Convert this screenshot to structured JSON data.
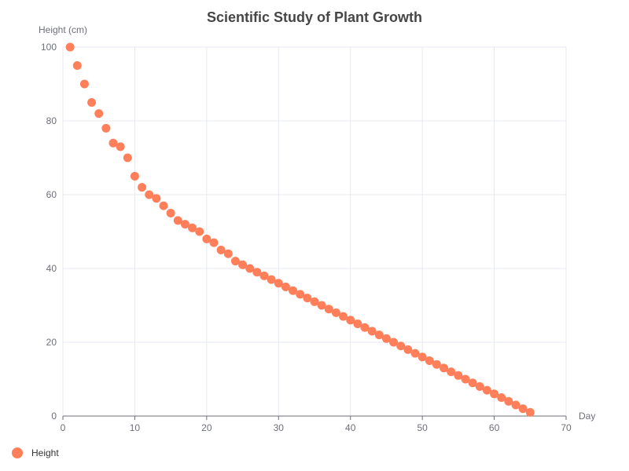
{
  "chart_data": {
    "type": "scatter",
    "title": "Scientific Study of Plant Growth",
    "xlabel": "Day",
    "ylabel": "Height (cm)",
    "xlim": [
      0,
      70
    ],
    "ylim": [
      0,
      100
    ],
    "xticks": [
      0,
      10,
      20,
      30,
      40,
      50,
      60,
      70
    ],
    "yticks": [
      0,
      20,
      40,
      60,
      80,
      100
    ],
    "grid": true,
    "legend_position": "bottom-left",
    "series": [
      {
        "name": "Height",
        "color": "#ff7f5a",
        "points": [
          [
            1,
            100
          ],
          [
            2,
            95
          ],
          [
            3,
            90
          ],
          [
            4,
            85
          ],
          [
            5,
            82
          ],
          [
            6,
            78
          ],
          [
            7,
            74
          ],
          [
            8,
            73
          ],
          [
            9,
            70
          ],
          [
            10,
            65
          ],
          [
            11,
            62
          ],
          [
            12,
            60
          ],
          [
            13,
            59
          ],
          [
            14,
            57
          ],
          [
            15,
            55
          ],
          [
            16,
            53
          ],
          [
            17,
            52
          ],
          [
            18,
            51
          ],
          [
            19,
            50
          ],
          [
            20,
            48
          ],
          [
            21,
            47
          ],
          [
            22,
            45
          ],
          [
            23,
            44
          ],
          [
            24,
            42
          ],
          [
            25,
            41
          ],
          [
            26,
            40
          ],
          [
            27,
            39
          ],
          [
            28,
            38
          ],
          [
            29,
            37
          ],
          [
            30,
            36
          ],
          [
            31,
            35
          ],
          [
            32,
            34
          ],
          [
            33,
            33
          ],
          [
            34,
            32
          ],
          [
            35,
            31
          ],
          [
            36,
            30
          ],
          [
            37,
            29
          ],
          [
            38,
            28
          ],
          [
            39,
            27
          ],
          [
            40,
            26
          ],
          [
            41,
            25
          ],
          [
            42,
            24
          ],
          [
            43,
            23
          ],
          [
            44,
            22
          ],
          [
            45,
            21
          ],
          [
            46,
            20
          ],
          [
            47,
            19
          ],
          [
            48,
            18
          ],
          [
            49,
            17
          ],
          [
            50,
            16
          ],
          [
            51,
            15
          ],
          [
            52,
            14
          ],
          [
            53,
            13
          ],
          [
            54,
            12
          ],
          [
            55,
            11
          ],
          [
            56,
            10
          ],
          [
            57,
            9
          ],
          [
            58,
            8
          ],
          [
            59,
            7
          ],
          [
            60,
            6
          ],
          [
            61,
            5
          ],
          [
            62,
            4
          ],
          [
            63,
            3
          ],
          [
            64,
            2
          ],
          [
            65,
            1
          ]
        ]
      }
    ]
  }
}
